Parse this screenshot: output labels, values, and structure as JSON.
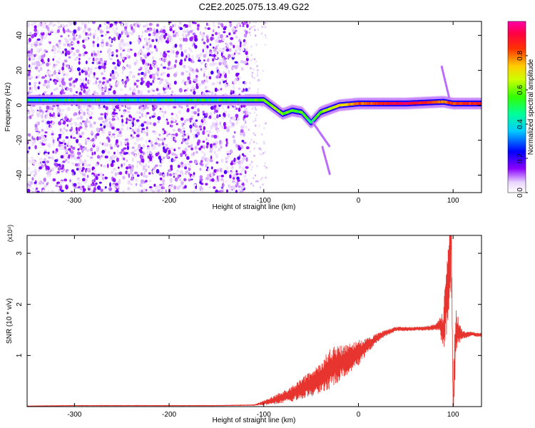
{
  "figure_title": "C2E2.2025.075.13.49.G22",
  "chart_data": [
    {
      "type": "heatmap",
      "xlabel": "Height of straight line (km)",
      "ylabel": "Frequency (Hz)",
      "xlim": [
        -350,
        130
      ],
      "ylim": [
        -50,
        48
      ],
      "xticks": [
        -300,
        -200,
        -100,
        0,
        100
      ],
      "yticks": [
        -40,
        -20,
        0,
        20,
        40
      ],
      "colorbar": {
        "label": "Normalized spectral amplitude",
        "range": [
          0.0,
          1.0
        ],
        "ticks": [
          0.0,
          0.2,
          0.4,
          0.6,
          0.8
        ],
        "tick_labels": [
          "0.0",
          "0.2",
          "0.4",
          "0.6",
          "0.8"
        ],
        "colormap": "rainbow (white-violet-blue-cyan-green-yellow-red-magenta)"
      },
      "dominant_band": [
        {
          "x": -350,
          "freq": 3,
          "amp": 0.45
        },
        {
          "x": -300,
          "freq": 3,
          "amp": 0.5
        },
        {
          "x": -250,
          "freq": 3,
          "amp": 0.45
        },
        {
          "x": -200,
          "freq": 3,
          "amp": 0.5
        },
        {
          "x": -150,
          "freq": 3,
          "amp": 0.5
        },
        {
          "x": -120,
          "freq": 3,
          "amp": 0.5
        },
        {
          "x": -100,
          "freq": 3,
          "amp": 0.6
        },
        {
          "x": -90,
          "freq": -1,
          "amp": 0.6
        },
        {
          "x": -80,
          "freq": -5,
          "amp": 0.6
        },
        {
          "x": -70,
          "freq": -3,
          "amp": 0.55
        },
        {
          "x": -60,
          "freq": -4,
          "amp": 0.55
        },
        {
          "x": -50,
          "freq": -10,
          "amp": 0.5
        },
        {
          "x": -40,
          "freq": -4,
          "amp": 0.6
        },
        {
          "x": -20,
          "freq": 0,
          "amp": 0.7
        },
        {
          "x": 0,
          "freq": 1,
          "amp": 0.8
        },
        {
          "x": 50,
          "freq": 1,
          "amp": 0.95
        },
        {
          "x": 90,
          "freq": 2,
          "amp": 0.8
        },
        {
          "x": 100,
          "freq": 1,
          "amp": 0.85
        },
        {
          "x": 130,
          "freq": 1,
          "amp": 0.85
        }
      ]
    },
    {
      "type": "line",
      "xlabel": "Height of straight line (km)",
      "ylabel": "SNR (10 * v/v)",
      "y_multiplier": "(x10⁴)",
      "xlim": [
        -350,
        130
      ],
      "ylim": [
        0,
        3.35
      ],
      "xticks": [
        -300,
        -200,
        -100,
        0,
        100
      ],
      "yticks": [
        1,
        2,
        3
      ],
      "color": "#e8342e",
      "series": [
        {
          "x": [
            -350,
            -300,
            -250,
            -200,
            -150,
            -110,
            -90,
            -70,
            -60,
            -50,
            -40,
            -30,
            -20,
            -10,
            0,
            10,
            20,
            30,
            40,
            50,
            60,
            70,
            80,
            85,
            90,
            93,
            96,
            98,
            100,
            103,
            110,
            120,
            130
          ],
          "y": [
            0.01,
            0.02,
            0.02,
            0.02,
            0.02,
            0.03,
            0.12,
            0.25,
            0.35,
            0.45,
            0.55,
            0.75,
            0.85,
            0.95,
            1.05,
            1.2,
            1.35,
            1.45,
            1.52,
            1.52,
            1.52,
            1.53,
            1.55,
            1.6,
            1.5,
            2.2,
            2.5,
            3.3,
            0.0,
            1.5,
            1.4,
            1.42,
            1.4
          ],
          "amplitude": [
            0.005,
            0.006,
            0.006,
            0.006,
            0.006,
            0.008,
            0.08,
            0.15,
            0.2,
            0.25,
            0.3,
            0.4,
            0.35,
            0.3,
            0.25,
            0.15,
            0.08,
            0.06,
            0.04,
            0.04,
            0.04,
            0.04,
            0.05,
            0.1,
            0.4,
            0.8,
            1.0,
            1.0,
            0.8,
            0.4,
            0.08,
            0.04,
            0.04
          ]
        }
      ]
    }
  ]
}
